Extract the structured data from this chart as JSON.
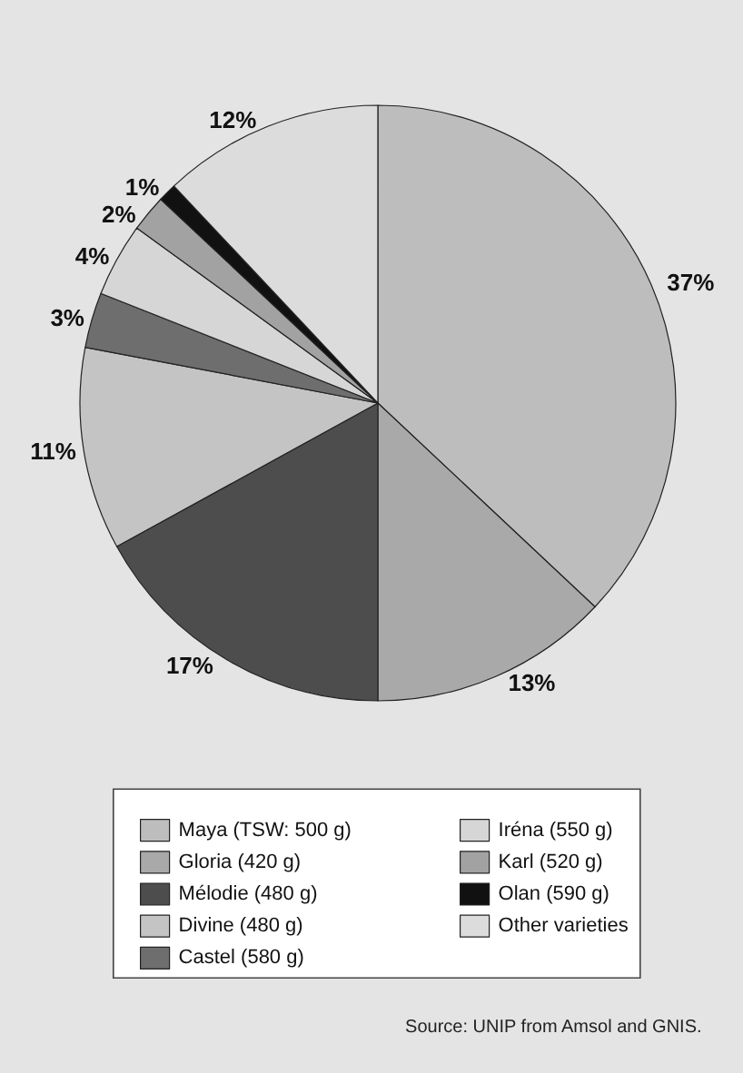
{
  "chart_data": {
    "type": "pie",
    "categories": [
      "Maya (TSW: 500 g)",
      "Gloria (420 g)",
      "Mélodie (480 g)",
      "Divine (480 g)",
      "Castel (580 g)",
      "Iréna (550 g)",
      "Karl (520 g)",
      "Olan (590 g)",
      "Other varieties"
    ],
    "values": [
      37,
      13,
      17,
      11,
      3,
      4,
      2,
      1,
      12
    ],
    "value_labels": [
      "37%",
      "13%",
      "17%",
      "11%",
      "3%",
      "4%",
      "2%",
      "1%",
      "12%"
    ],
    "colors": [
      "#bdbdbd",
      "#a9a9a9",
      "#4d4d4d",
      "#c4c4c4",
      "#6e6e6e",
      "#d6d6d6",
      "#a2a2a2",
      "#111111",
      "#dcdcdc"
    ],
    "legend": "bottom",
    "annotations": [
      "Source: UNIP from Amsol and GNIS."
    ]
  }
}
